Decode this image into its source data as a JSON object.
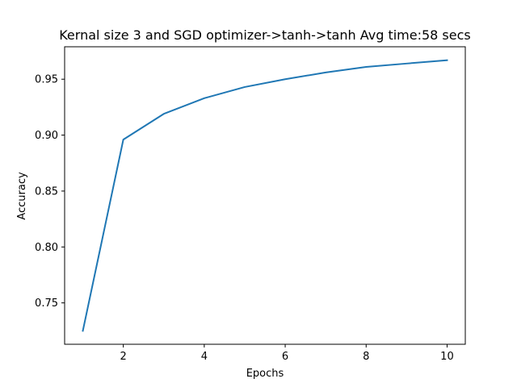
{
  "chart_data": {
    "type": "line",
    "title": "Kernal size 3 and SGD optimizer->tanh->tanh Avg time:58 secs",
    "xlabel": "Epochs",
    "ylabel": "Accuracy",
    "xlim": [
      0.55,
      10.45
    ],
    "ylim": [
      0.713,
      0.979
    ],
    "xticks": [
      2,
      4,
      6,
      8,
      10
    ],
    "yticks": [
      0.75,
      0.8,
      0.85,
      0.9,
      0.95
    ],
    "ytick_labels": [
      "0.75",
      "0.80",
      "0.85",
      "0.90",
      "0.95"
    ],
    "grid": false,
    "series": [
      {
        "color": "#1f77b4",
        "x": [
          1,
          2,
          3,
          4,
          5,
          6,
          7,
          8,
          9,
          10
        ],
        "y": [
          0.725,
          0.896,
          0.919,
          0.933,
          0.943,
          0.95,
          0.956,
          0.961,
          0.964,
          0.967
        ]
      }
    ]
  }
}
